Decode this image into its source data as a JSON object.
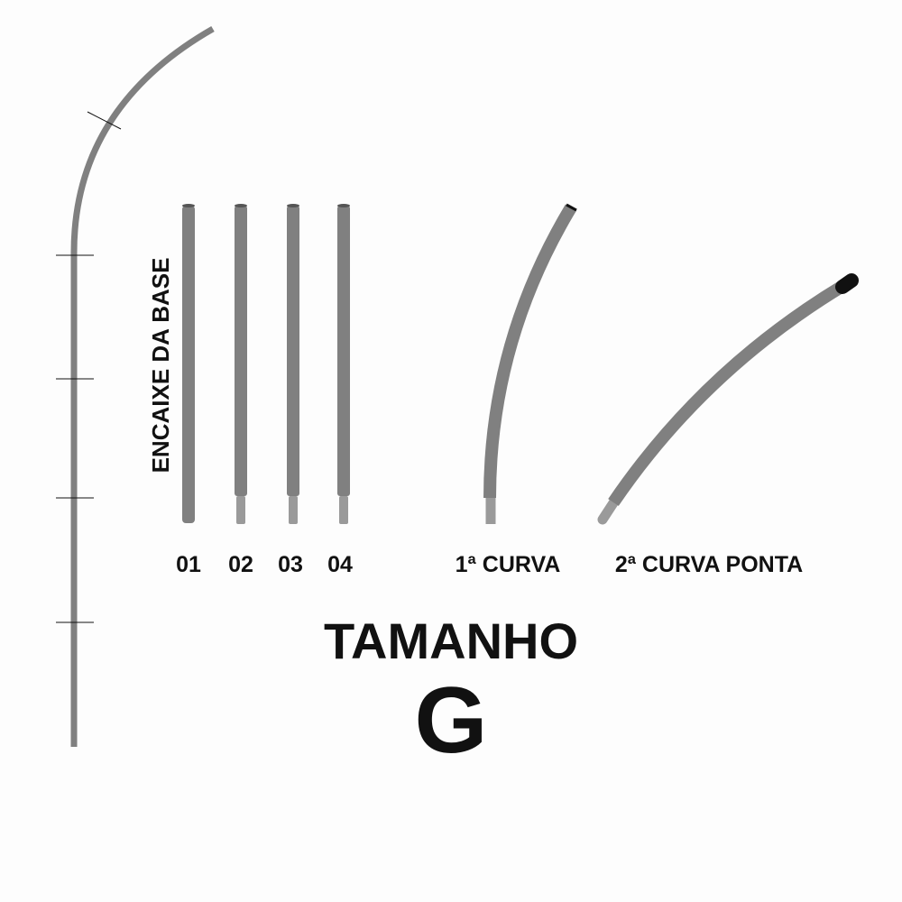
{
  "side_label": "ENCAIXE DA BASE",
  "pieces": [
    {
      "label": "01"
    },
    {
      "label": "02"
    },
    {
      "label": "03"
    },
    {
      "label": "04"
    }
  ],
  "curve1_label": "1ª CURVA",
  "curve2_label": "2ª CURVA PONTA",
  "title": "TAMANHO",
  "size": "G",
  "colors": {
    "pole": "#808080",
    "pole_tip": "#9a9a9a",
    "cap": "#111111",
    "text": "#111111"
  }
}
